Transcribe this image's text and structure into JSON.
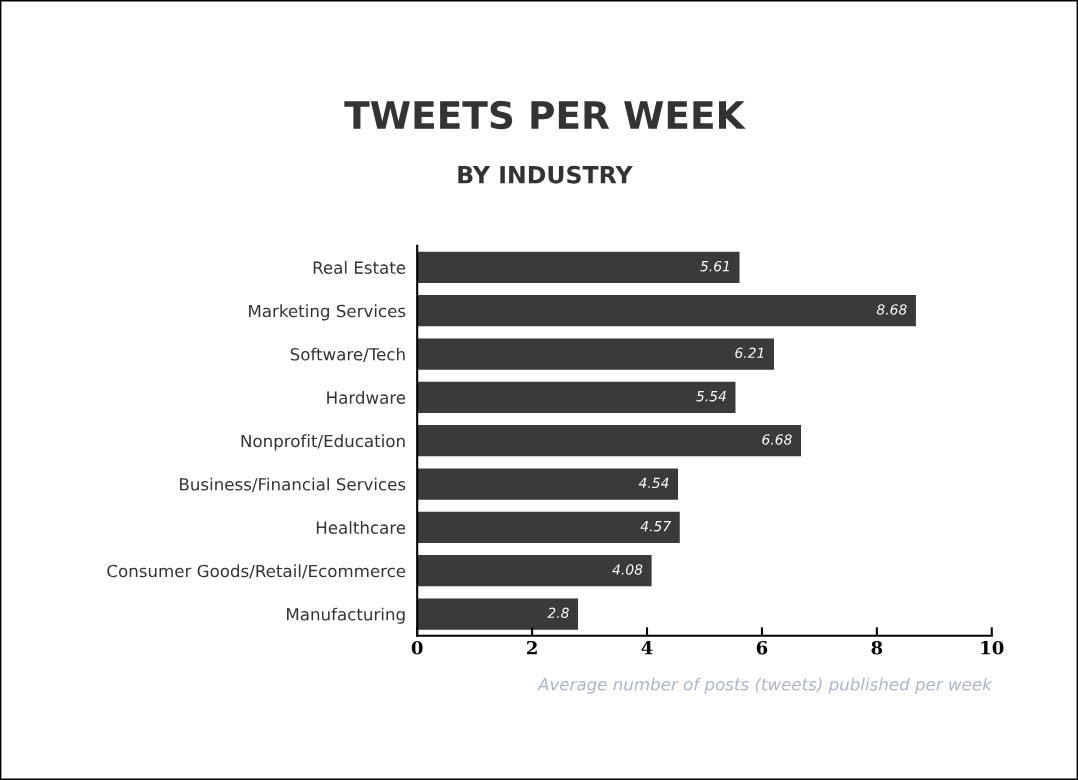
{
  "chart_data": {
    "type": "bar",
    "orientation": "horizontal",
    "title": "TWEETS PER WEEK",
    "subtitle": "BY INDUSTRY",
    "categories": [
      "Real Estate",
      "Marketing Services",
      "Software/Tech",
      "Hardware",
      "Nonprofit/Education",
      "Business/Financial Services",
      "Healthcare",
      "Consumer Goods/Retail/Ecommerce",
      "Manufacturing"
    ],
    "values": [
      5.61,
      8.68,
      6.21,
      5.54,
      6.68,
      4.54,
      4.57,
      4.08,
      2.8
    ],
    "color": "#3a3a3a",
    "data_labels": true,
    "xlim": [
      0,
      10
    ],
    "xticks": [
      0,
      2,
      4,
      6,
      8,
      10
    ],
    "grid": false,
    "legend": false,
    "annotations": [
      "Average number of posts (tweets) published per week"
    ]
  }
}
